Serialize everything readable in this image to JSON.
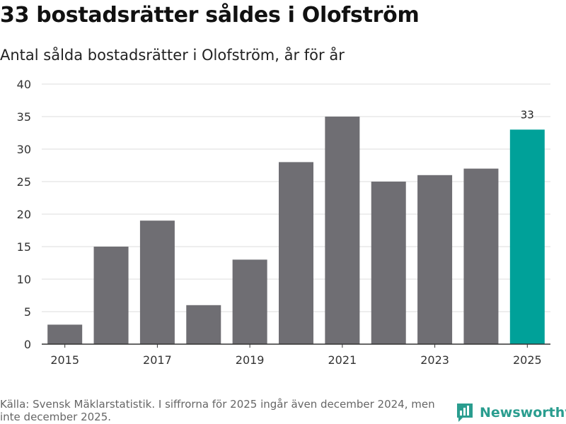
{
  "title": "33 bostadsrätter såldes i Olofström",
  "subtitle": "Antal sålda bostadsrätter i Olofström, år för år",
  "footer": {
    "source": "Källa: Svensk Mäklarstatistik. I siffrorna för 2025 ingår även december 2024, men inte december 2025.",
    "brand": "Newsworthy"
  },
  "colors": {
    "bar": "#6f6e73",
    "highlight": "#00a199",
    "grid": "#dcdcdc",
    "axis": "#333333",
    "brand": "#2a9d8f"
  },
  "chart_data": {
    "type": "bar",
    "title": "33 bostadsrätter såldes i Olofström",
    "subtitle": "Antal sålda bostadsrätter i Olofström, år för år",
    "xlabel": "",
    "ylabel": "",
    "categories": [
      "2015",
      "2016",
      "2017",
      "2018",
      "2019",
      "2020",
      "2021",
      "2022",
      "2023",
      "2024",
      "2025"
    ],
    "values": [
      3,
      15,
      19,
      6,
      13,
      28,
      35,
      25,
      26,
      27,
      33
    ],
    "x_tick_labels": [
      "2015",
      "2017",
      "2019",
      "2021",
      "2023",
      "2025"
    ],
    "y_ticks": [
      0,
      5,
      10,
      15,
      20,
      25,
      30,
      35,
      40
    ],
    "ylim": [
      0,
      40
    ],
    "grid": true,
    "highlight_category": "2025",
    "data_labels": [
      {
        "category": "2025",
        "text": "33"
      }
    ]
  }
}
